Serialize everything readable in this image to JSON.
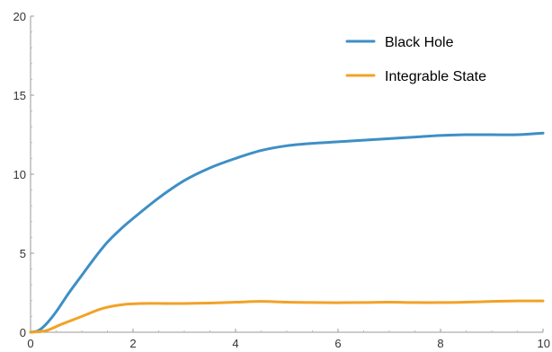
{
  "chart_data": {
    "type": "line",
    "title": "",
    "xlabel": "",
    "ylabel": "",
    "xlim": [
      0,
      10
    ],
    "ylim": [
      0,
      20
    ],
    "x_ticks": [
      "0",
      "2",
      "4",
      "6",
      "8",
      "10"
    ],
    "y_ticks": [
      "0",
      "5",
      "10",
      "15",
      "20"
    ],
    "grid": false,
    "legend_position": "top-right",
    "series": [
      {
        "name": "Black Hole",
        "color": "#3d8fc6",
        "points": [
          [
            0,
            0
          ],
          [
            0.15,
            0.1
          ],
          [
            0.3,
            0.5
          ],
          [
            0.5,
            1.3
          ],
          [
            0.75,
            2.5
          ],
          [
            1.0,
            3.6
          ],
          [
            1.25,
            4.7
          ],
          [
            1.5,
            5.7
          ],
          [
            1.75,
            6.5
          ],
          [
            2.0,
            7.2
          ],
          [
            2.5,
            8.5
          ],
          [
            3.0,
            9.6
          ],
          [
            3.5,
            10.4
          ],
          [
            4.0,
            11.0
          ],
          [
            4.5,
            11.5
          ],
          [
            5.0,
            11.8
          ],
          [
            5.5,
            11.95
          ],
          [
            6.0,
            12.05
          ],
          [
            6.5,
            12.15
          ],
          [
            7.0,
            12.25
          ],
          [
            7.5,
            12.35
          ],
          [
            8.0,
            12.45
          ],
          [
            8.5,
            12.5
          ],
          [
            9.0,
            12.5
          ],
          [
            9.5,
            12.5
          ],
          [
            10.0,
            12.6
          ]
        ]
      },
      {
        "name": "Integrable State",
        "color": "#f2a227",
        "points": [
          [
            0,
            0
          ],
          [
            0.3,
            0.1
          ],
          [
            0.6,
            0.5
          ],
          [
            1.0,
            1.0
          ],
          [
            1.4,
            1.5
          ],
          [
            1.8,
            1.75
          ],
          [
            2.2,
            1.82
          ],
          [
            2.6,
            1.82
          ],
          [
            3.0,
            1.82
          ],
          [
            3.5,
            1.85
          ],
          [
            4.0,
            1.9
          ],
          [
            4.5,
            1.95
          ],
          [
            5.0,
            1.9
          ],
          [
            5.5,
            1.88
          ],
          [
            6.0,
            1.87
          ],
          [
            6.5,
            1.88
          ],
          [
            7.0,
            1.9
          ],
          [
            7.5,
            1.88
          ],
          [
            8.0,
            1.88
          ],
          [
            8.5,
            1.9
          ],
          [
            9.0,
            1.95
          ],
          [
            9.5,
            1.98
          ],
          [
            10.0,
            1.98
          ]
        ]
      }
    ]
  }
}
